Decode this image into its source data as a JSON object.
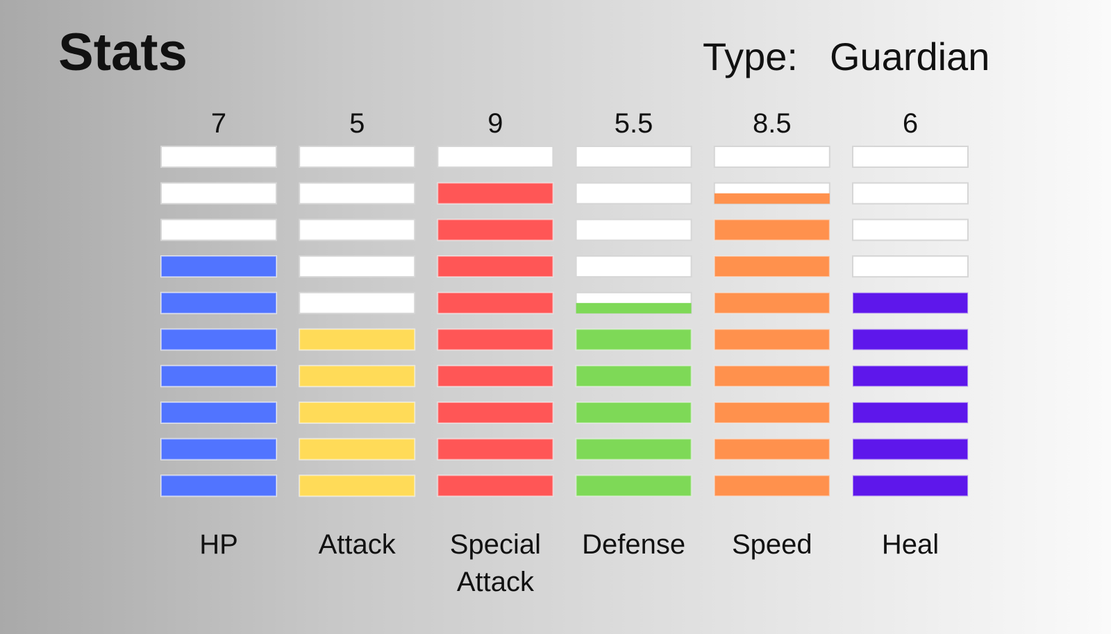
{
  "header": {
    "title": "Stats",
    "type_label": "Type:",
    "type_value": "Guardian"
  },
  "chart_data": {
    "type": "bar",
    "title": "Stats",
    "max_value": 10,
    "segments": 10,
    "empty_color": "#ffffff",
    "categories": [
      {
        "label": [
          "HP"
        ],
        "value": 7,
        "value_label": "7",
        "color": "#5174ff"
      },
      {
        "label": [
          "Attack"
        ],
        "value": 5,
        "value_label": "5",
        "color": "#ffdb58"
      },
      {
        "label": [
          "Special",
          "Attack"
        ],
        "value": 9,
        "value_label": "9",
        "color": "#ff5656"
      },
      {
        "label": [
          "Defense"
        ],
        "value": 5.5,
        "value_label": "5.5",
        "color": "#7ed957"
      },
      {
        "label": [
          "Speed"
        ],
        "value": 8.5,
        "value_label": "8.5",
        "color": "#ff914d"
      },
      {
        "label": [
          "Heal"
        ],
        "value": 6,
        "value_label": "6",
        "color": "#5e17eb"
      }
    ]
  }
}
